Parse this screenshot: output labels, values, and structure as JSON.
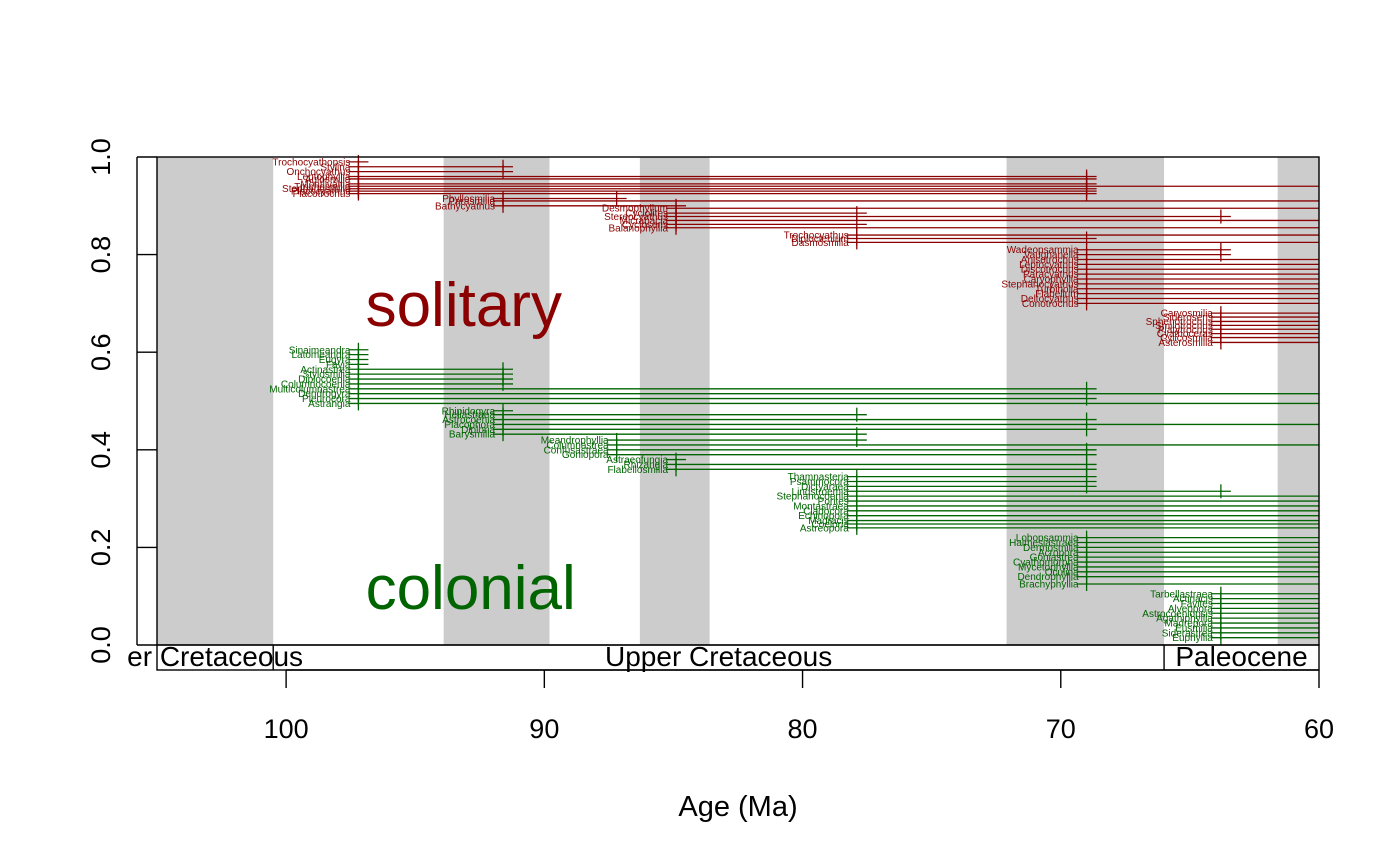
{
  "chart_data": {
    "type": "range_plot",
    "xlabel": "Age (Ma)",
    "ylabel": "",
    "xlim": [
      105,
      60
    ],
    "ylim": [
      0,
      1
    ],
    "x_ticks": [
      100,
      90,
      80,
      70,
      60
    ],
    "x_tick_labels": [
      "100",
      "90",
      "80",
      "70",
      "60"
    ],
    "y_ticks": [
      0,
      0.2,
      0.4,
      0.6,
      0.8,
      1.0
    ],
    "y_tick_labels": [
      "0.0",
      "0.2",
      "0.4",
      "0.6",
      "0.8",
      "1.0"
    ],
    "grid": false,
    "stage_bands": [
      [
        105,
        100.5
      ],
      [
        93.9,
        89.8
      ],
      [
        86.3,
        83.6
      ],
      [
        72.1,
        66.0
      ],
      [
        61.6,
        59.2
      ]
    ],
    "periods": [
      {
        "label": "er Cretaceous",
        "start": 105,
        "end": 100.5
      },
      {
        "label": "Upper Cretaceous",
        "start": 100.5,
        "end": 66.0
      },
      {
        "label": "Paleocene",
        "start": 66.0,
        "end": 60
      }
    ],
    "series": [
      {
        "name": "solitary",
        "color": "#8B0000",
        "label_pos": {
          "x": 97,
          "y": 0.695
        },
        "taxa": [
          {
            "name": "Trochocyathopsis",
            "first": 97.2,
            "last": 97.2,
            "y": 0.99
          },
          {
            "name": "Stylina",
            "first": 97.2,
            "last": 91.6,
            "y": 0.98
          },
          {
            "name": "Onchocyathus",
            "first": 97.2,
            "last": 91.6,
            "y": 0.97
          },
          {
            "name": "Leptophyllia",
            "first": 97.2,
            "last": 69.0,
            "y": 0.96
          },
          {
            "name": "Aulosmilia",
            "first": 97.2,
            "last": 69.0,
            "y": 0.955
          },
          {
            "name": "Montlivaltia",
            "first": 97.2,
            "last": 69.0,
            "y": 0.945
          },
          {
            "name": "Trochosmilia",
            "first": 97.2,
            "last": 60,
            "y": 0.94
          },
          {
            "name": "Stephanosmilia",
            "first": 97.2,
            "last": 69.0,
            "y": 0.935
          },
          {
            "name": "Placocyathus",
            "first": 97.2,
            "last": 69.0,
            "y": 0.93
          },
          {
            "name": "Placotrochus",
            "first": 97.2,
            "last": 69.0,
            "y": 0.925
          },
          {
            "name": "Phyllosmilia",
            "first": 91.6,
            "last": 87.2,
            "y": 0.915
          },
          {
            "name": "Parasmilia",
            "first": 91.6,
            "last": 60,
            "y": 0.91
          },
          {
            "name": "Bathycyathus",
            "first": 91.6,
            "last": 84.9,
            "y": 0.9
          },
          {
            "name": "Desmophyllum",
            "first": 84.9,
            "last": 60,
            "y": 0.895
          },
          {
            "name": "Cyclolites",
            "first": 84.9,
            "last": 77.9,
            "y": 0.885
          },
          {
            "name": "Stereocyathus",
            "first": 84.9,
            "last": 63.8,
            "y": 0.878
          },
          {
            "name": "Micrabacia",
            "first": 84.9,
            "last": 60,
            "y": 0.87
          },
          {
            "name": "Cycloseris",
            "first": 84.9,
            "last": 77.9,
            "y": 0.862
          },
          {
            "name": "Balanophyllia",
            "first": 84.9,
            "last": 60,
            "y": 0.855
          },
          {
            "name": "Trochocyathus",
            "first": 77.9,
            "last": 60,
            "y": 0.84
          },
          {
            "name": "Diploctenium",
            "first": 77.9,
            "last": 69.0,
            "y": 0.833
          },
          {
            "name": "Dasmosmilia",
            "first": 77.9,
            "last": 60,
            "y": 0.825
          },
          {
            "name": "Wadeopsammia",
            "first": 69.0,
            "last": 63.8,
            "y": 0.81
          },
          {
            "name": "Vaughanella",
            "first": 69.0,
            "last": 63.8,
            "y": 0.8
          },
          {
            "name": "Anisotrochus",
            "first": 69.0,
            "last": 60,
            "y": 0.79
          },
          {
            "name": "Leptocyathus",
            "first": 69.0,
            "last": 60,
            "y": 0.78
          },
          {
            "name": "Discotrochus",
            "first": 69.0,
            "last": 60,
            "y": 0.77
          },
          {
            "name": "Paracyathus",
            "first": 69.0,
            "last": 60,
            "y": 0.76
          },
          {
            "name": "Caryophyllia",
            "first": 69.0,
            "last": 60,
            "y": 0.75
          },
          {
            "name": "Stephanocyathus",
            "first": 69.0,
            "last": 60,
            "y": 0.74
          },
          {
            "name": "Turbinolia",
            "first": 69.0,
            "last": 60,
            "y": 0.73
          },
          {
            "name": "Flabellum",
            "first": 69.0,
            "last": 60,
            "y": 0.72
          },
          {
            "name": "Deltocyathus",
            "first": 69.0,
            "last": 60,
            "y": 0.71
          },
          {
            "name": "Conotrochus",
            "first": 69.0,
            "last": 60,
            "y": 0.7
          },
          {
            "name": "Caryosmilia",
            "first": 63.8,
            "last": 60,
            "y": 0.68
          },
          {
            "name": "Sideroseris",
            "first": 63.8,
            "last": 60,
            "y": 0.672
          },
          {
            "name": "Sphenotrochus",
            "first": 63.8,
            "last": 60,
            "y": 0.663
          },
          {
            "name": "Smilotrochus",
            "first": 63.8,
            "last": 60,
            "y": 0.655
          },
          {
            "name": "Platytrochus",
            "first": 63.8,
            "last": 60,
            "y": 0.647
          },
          {
            "name": "Cyathoceras",
            "first": 63.8,
            "last": 60,
            "y": 0.638
          },
          {
            "name": "Cylicosmilia",
            "first": 63.8,
            "last": 60,
            "y": 0.63
          },
          {
            "name": "Asterosmilia",
            "first": 63.8,
            "last": 60,
            "y": 0.62
          }
        ]
      },
      {
        "name": "colonial",
        "color": "#006400",
        "label_pos": {
          "x": 97,
          "y": 0.115
        },
        "taxa": [
          {
            "name": "Sinaimeandra",
            "first": 97.2,
            "last": 97.2,
            "y": 0.605
          },
          {
            "name": "Latomeandra",
            "first": 97.2,
            "last": 97.2,
            "y": 0.595
          },
          {
            "name": "Eugyra",
            "first": 97.2,
            "last": 97.2,
            "y": 0.585
          },
          {
            "name": "Favia",
            "first": 97.2,
            "last": 97.2,
            "y": 0.575
          },
          {
            "name": "Actinastrea",
            "first": 97.2,
            "last": 91.6,
            "y": 0.565
          },
          {
            "name": "Stylosmilia",
            "first": 97.2,
            "last": 91.6,
            "y": 0.555
          },
          {
            "name": "Diplocoenia",
            "first": 97.2,
            "last": 91.6,
            "y": 0.545
          },
          {
            "name": "Columnocoenia",
            "first": 97.2,
            "last": 91.6,
            "y": 0.535
          },
          {
            "name": "Multicolumnastrea",
            "first": 97.2,
            "last": 69.0,
            "y": 0.525
          },
          {
            "name": "Dendrogyra",
            "first": 97.2,
            "last": 60,
            "y": 0.515
          },
          {
            "name": "Pleurocora",
            "first": 97.2,
            "last": 69.0,
            "y": 0.505
          },
          {
            "name": "Astrangia",
            "first": 97.2,
            "last": 60,
            "y": 0.495
          },
          {
            "name": "Rhipidogyra",
            "first": 91.6,
            "last": 91.6,
            "y": 0.48
          },
          {
            "name": "Heliastraea",
            "first": 91.6,
            "last": 77.9,
            "y": 0.472
          },
          {
            "name": "Astrocoenia",
            "first": 91.6,
            "last": 69.0,
            "y": 0.462
          },
          {
            "name": "Placophora",
            "first": 91.6,
            "last": 60,
            "y": 0.452
          },
          {
            "name": "Diploria",
            "first": 91.6,
            "last": 69.0,
            "y": 0.442
          },
          {
            "name": "Barysmilia",
            "first": 91.6,
            "last": 77.9,
            "y": 0.432
          },
          {
            "name": "Meandrophyllia",
            "first": 87.2,
            "last": 77.9,
            "y": 0.42
          },
          {
            "name": "Columnastrea",
            "first": 87.2,
            "last": 60,
            "y": 0.41
          },
          {
            "name": "Confusastraea",
            "first": 87.2,
            "last": 69.0,
            "y": 0.4
          },
          {
            "name": "Goniopora",
            "first": 87.2,
            "last": 69.0,
            "y": 0.39
          },
          {
            "name": "Astraeofungia",
            "first": 84.9,
            "last": 84.9,
            "y": 0.38
          },
          {
            "name": "Rhizangia",
            "first": 84.9,
            "last": 69.0,
            "y": 0.37
          },
          {
            "name": "Flabellosmilia",
            "first": 84.9,
            "last": 69.0,
            "y": 0.36
          },
          {
            "name": "Thamnasteria",
            "first": 77.9,
            "last": 69.0,
            "y": 0.345
          },
          {
            "name": "Psammocora",
            "first": 77.9,
            "last": 69.0,
            "y": 0.335
          },
          {
            "name": "Dictyaraea",
            "first": 77.9,
            "last": 69.0,
            "y": 0.325
          },
          {
            "name": "Lindstroemia",
            "first": 77.9,
            "last": 63.8,
            "y": 0.315
          },
          {
            "name": "Stephanocoenia",
            "first": 77.9,
            "last": 60,
            "y": 0.305
          },
          {
            "name": "Porites",
            "first": 77.9,
            "last": 60,
            "y": 0.295
          },
          {
            "name": "Montastraea",
            "first": 77.9,
            "last": 60,
            "y": 0.285
          },
          {
            "name": "Cladocora",
            "first": 77.9,
            "last": 60,
            "y": 0.275
          },
          {
            "name": "Echinopora",
            "first": 77.9,
            "last": 60,
            "y": 0.265
          },
          {
            "name": "Madracis",
            "first": 77.9,
            "last": 60,
            "y": 0.255
          },
          {
            "name": "Coeloria",
            "first": 77.9,
            "last": 60,
            "y": 0.248
          },
          {
            "name": "Astreopora",
            "first": 77.9,
            "last": 60,
            "y": 0.24
          },
          {
            "name": "Lobopsammia",
            "first": 69.0,
            "last": 60,
            "y": 0.22
          },
          {
            "name": "Haimesiastraea",
            "first": 69.0,
            "last": 60,
            "y": 0.21
          },
          {
            "name": "Dermosmilia",
            "first": 69.0,
            "last": 60,
            "y": 0.2
          },
          {
            "name": "Acropora",
            "first": 69.0,
            "last": 60,
            "y": 0.19
          },
          {
            "name": "Goniastrea",
            "first": 69.0,
            "last": 60,
            "y": 0.18
          },
          {
            "name": "Cyathomorpha",
            "first": 69.0,
            "last": 60,
            "y": 0.17
          },
          {
            "name": "Mycetophyllia",
            "first": 69.0,
            "last": 60,
            "y": 0.16
          },
          {
            "name": "Oculina",
            "first": 69.0,
            "last": 60,
            "y": 0.15
          },
          {
            "name": "Dendrophyllia",
            "first": 69.0,
            "last": 60,
            "y": 0.14
          },
          {
            "name": "Brachyphyllia",
            "first": 69.0,
            "last": 60,
            "y": 0.125
          },
          {
            "name": "Tarbellastraea",
            "first": 63.8,
            "last": 60,
            "y": 0.105
          },
          {
            "name": "Actinacis",
            "first": 63.8,
            "last": 60,
            "y": 0.095
          },
          {
            "name": "Favites",
            "first": 63.8,
            "last": 60,
            "y": 0.085
          },
          {
            "name": "Alveopora",
            "first": 63.8,
            "last": 60,
            "y": 0.075
          },
          {
            "name": "Astrocoeniopsis",
            "first": 63.8,
            "last": 60,
            "y": 0.065
          },
          {
            "name": "Agathiphyllia",
            "first": 63.8,
            "last": 60,
            "y": 0.055
          },
          {
            "name": "Madrepora",
            "first": 63.8,
            "last": 60,
            "y": 0.045
          },
          {
            "name": "Eusmilia",
            "first": 63.8,
            "last": 60,
            "y": 0.035
          },
          {
            "name": "Siderastrea",
            "first": 63.8,
            "last": 60,
            "y": 0.025
          },
          {
            "name": "Euphyllia",
            "first": 63.8,
            "last": 60,
            "y": 0.015
          }
        ]
      }
    ]
  }
}
